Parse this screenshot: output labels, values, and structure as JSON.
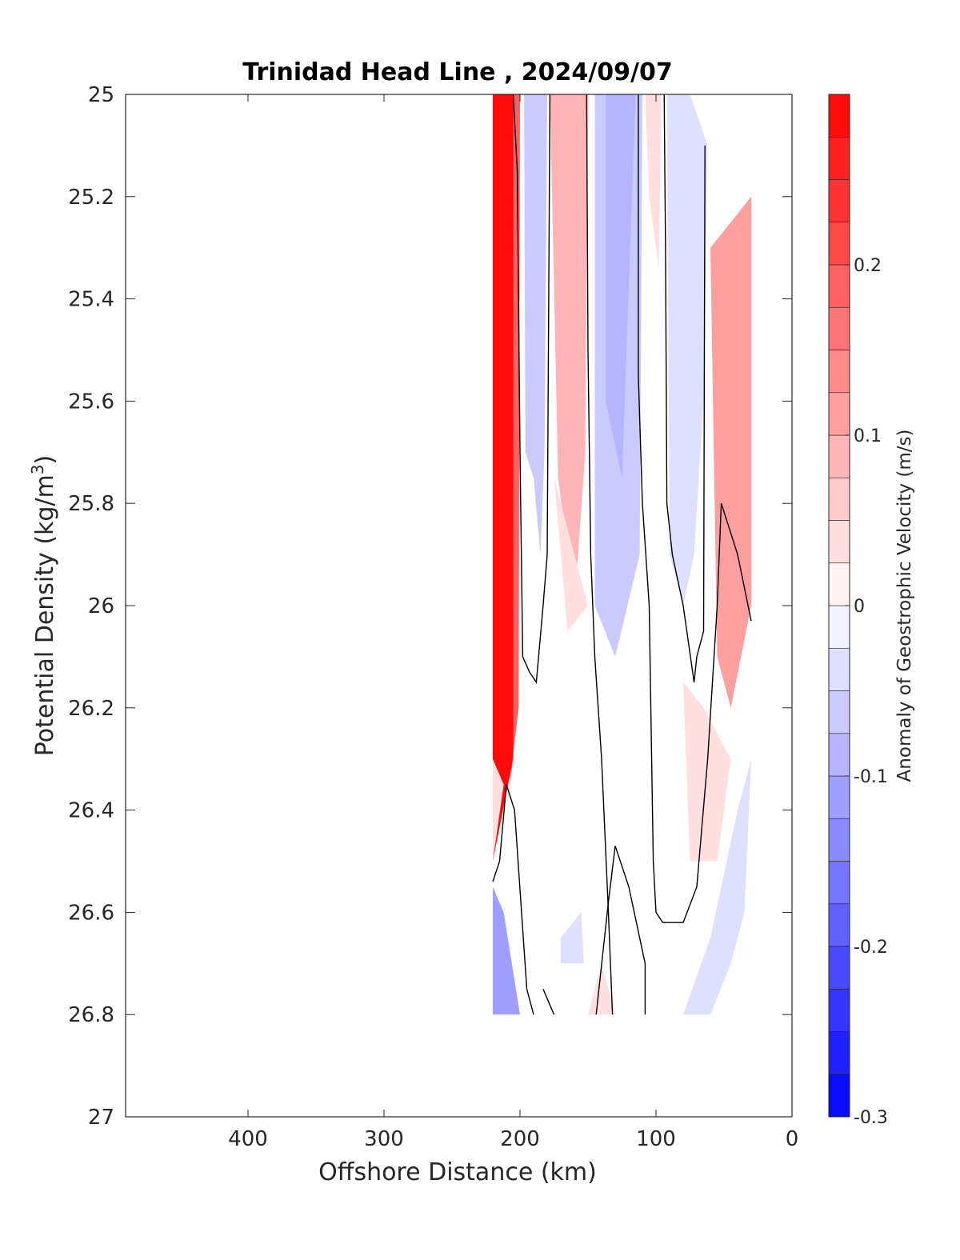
{
  "chart_data": {
    "type": "heatmap",
    "title": "Trinidad Head Line , 2024/09/07",
    "xlabel": "Offshore Distance (km)",
    "ylabel": "Potential Density (kg/m³)",
    "ylabel_base": "Potential Density (kg/m",
    "ylabel_sup": "3",
    "ylabel_close": ")",
    "xlim": [
      490,
      0
    ],
    "ylim": [
      25,
      27
    ],
    "x_reversed": true,
    "y_reversed": true,
    "x_ticks": [
      400,
      300,
      200,
      100,
      0
    ],
    "x_tick_labels": [
      "400",
      "300",
      "200",
      "100",
      "0"
    ],
    "y_ticks": [
      25,
      25.2,
      25.4,
      25.6,
      25.8,
      26,
      26.2,
      26.4,
      26.6,
      26.8,
      27
    ],
    "y_tick_labels": [
      "25",
      "25.2",
      "25.4",
      "25.6",
      "25.8",
      "26",
      "26.2",
      "26.4",
      "26.6",
      "26.8",
      "27"
    ],
    "grid": false,
    "colorbar": {
      "label": "Anomaly of Geostrophic Velocity (m/s)",
      "range": [
        -0.3,
        0.3
      ],
      "levels": 24,
      "ticks": [
        -0.3,
        -0.2,
        -0.1,
        0,
        0.1,
        0.2
      ],
      "tick_labels": [
        "-0.3",
        "-0.2",
        "-0.1",
        "0",
        "0.1",
        "0.2"
      ],
      "colormap": "blue-white-red",
      "neg_color": "#0000ff",
      "pos_color": "#ff0000",
      "zero_color": "#ffffff"
    },
    "zero_contour_color": "#000000",
    "regions": [
      {
        "value": 0.28,
        "points": [
          [
            220,
            25
          ],
          [
            205,
            25
          ],
          [
            205,
            26.3
          ],
          [
            220,
            26.5
          ]
        ]
      },
      {
        "value": 0.18,
        "points": [
          [
            205,
            25
          ],
          [
            200,
            25
          ],
          [
            201,
            26.2
          ],
          [
            210,
            26.4
          ],
          [
            205,
            26.3
          ]
        ]
      },
      {
        "value": 0.04,
        "points": [
          [
            220,
            26.3
          ],
          [
            212,
            26.35
          ],
          [
            220,
            26.5
          ]
        ]
      },
      {
        "value": -0.12,
        "points": [
          [
            220,
            26.55
          ],
          [
            212,
            26.6
          ],
          [
            200,
            26.8
          ],
          [
            220,
            26.8
          ],
          [
            220,
            26.9
          ]
        ]
      },
      {
        "value": -0.06,
        "points": [
          [
            197,
            25
          ],
          [
            180,
            25
          ],
          [
            182,
            25.7
          ],
          [
            185,
            25.9
          ],
          [
            190,
            25.75
          ],
          [
            196,
            25.7
          ]
        ]
      },
      {
        "value": 0.09,
        "points": [
          [
            178,
            25
          ],
          [
            150,
            25
          ],
          [
            152,
            25.7
          ],
          [
            160,
            26.0
          ],
          [
            172,
            25.75
          ]
        ]
      },
      {
        "value": 0.03,
        "points": [
          [
            175,
            25.75
          ],
          [
            165,
            26.05
          ],
          [
            150,
            26.0
          ]
        ]
      },
      {
        "value": -0.06,
        "points": [
          [
            145,
            25
          ],
          [
            110,
            25
          ],
          [
            112,
            25.9
          ],
          [
            130,
            26.1
          ],
          [
            145,
            26.0
          ]
        ]
      },
      {
        "value": -0.09,
        "points": [
          [
            137,
            25
          ],
          [
            115,
            25
          ],
          [
            125,
            25.75
          ],
          [
            137,
            25.6
          ]
        ]
      },
      {
        "value": 0.04,
        "points": [
          [
            108,
            25
          ],
          [
            96,
            25
          ],
          [
            98,
            25.34
          ],
          [
            105,
            25.2
          ]
        ]
      },
      {
        "value": -0.05,
        "points": [
          [
            92,
            25
          ],
          [
            75,
            25
          ],
          [
            62,
            25.1
          ],
          [
            65,
            25.6
          ],
          [
            72,
            25.9
          ],
          [
            80,
            26.0
          ],
          [
            90,
            25.9
          ]
        ]
      },
      {
        "value": 0.1,
        "points": [
          [
            60,
            25.3
          ],
          [
            30,
            25.2
          ],
          [
            30,
            26.0
          ],
          [
            45,
            26.2
          ],
          [
            55,
            26.1
          ]
        ]
      },
      {
        "value": 0.03,
        "points": [
          [
            80,
            26.15
          ],
          [
            65,
            26.2
          ],
          [
            45,
            26.3
          ],
          [
            55,
            26.5
          ],
          [
            75,
            26.5
          ]
        ]
      },
      {
        "value": -0.04,
        "points": [
          [
            40,
            26.4
          ],
          [
            30,
            26.3
          ],
          [
            35,
            26.6
          ],
          [
            45,
            26.7
          ],
          [
            60,
            26.8
          ],
          [
            80,
            26.8
          ],
          [
            60,
            26.65
          ]
        ]
      },
      {
        "value": -0.03,
        "points": [
          [
            170,
            26.65
          ],
          [
            155,
            26.6
          ],
          [
            153,
            26.7
          ],
          [
            170,
            26.7
          ]
        ]
      },
      {
        "value": 0.03,
        "points": [
          [
            140,
            26.7
          ],
          [
            130,
            26.8
          ],
          [
            150,
            26.8
          ]
        ]
      }
    ],
    "zero_contours": [
      [
        [
          220,
          26.54
        ],
        [
          215,
          26.5
        ],
        [
          210,
          26.35
        ],
        [
          204,
          26.4
        ],
        [
          195,
          26.75
        ],
        [
          190,
          26.8
        ]
      ],
      [
        [
          205,
          25
        ],
        [
          202,
          25.15
        ],
        [
          200,
          25.7
        ],
        [
          198,
          26.1
        ],
        [
          193,
          26.13
        ],
        [
          188,
          26.15
        ],
        [
          183,
          26.0
        ],
        [
          180,
          25.9
        ],
        [
          178,
          25.0
        ]
      ],
      [
        [
          183,
          26.75
        ],
        [
          175,
          26.8
        ]
      ],
      [
        [
          151,
          25
        ],
        [
          150,
          25.5
        ],
        [
          148,
          25.9
        ],
        [
          145,
          26.1
        ],
        [
          140,
          26.3
        ],
        [
          135,
          26.6
        ],
        [
          132,
          26.8
        ]
      ],
      [
        [
          108,
          26.8
        ],
        [
          108,
          26.7
        ],
        [
          120,
          26.55
        ],
        [
          130,
          26.47
        ],
        [
          135,
          26.58
        ],
        [
          144,
          26.8
        ]
      ],
      [
        [
          113,
          25
        ],
        [
          113,
          25.55
        ],
        [
          110,
          25.8
        ],
        [
          105,
          26.0
        ],
        [
          102,
          26.5
        ],
        [
          100,
          26.6
        ],
        [
          95,
          26.62
        ],
        [
          80,
          26.62
        ],
        [
          70,
          26.55
        ],
        [
          62,
          26.3
        ],
        [
          55,
          26.0
        ],
        [
          52,
          25.8
        ],
        [
          40,
          25.9
        ],
        [
          30,
          26.03
        ]
      ],
      [
        [
          94,
          25
        ],
        [
          93,
          25.3
        ],
        [
          92,
          25.8
        ],
        [
          88,
          25.9
        ],
        [
          80,
          26.0
        ],
        [
          72,
          26.15
        ],
        [
          70,
          26.1
        ],
        [
          65,
          26.05
        ],
        [
          64,
          25.1
        ]
      ]
    ]
  }
}
